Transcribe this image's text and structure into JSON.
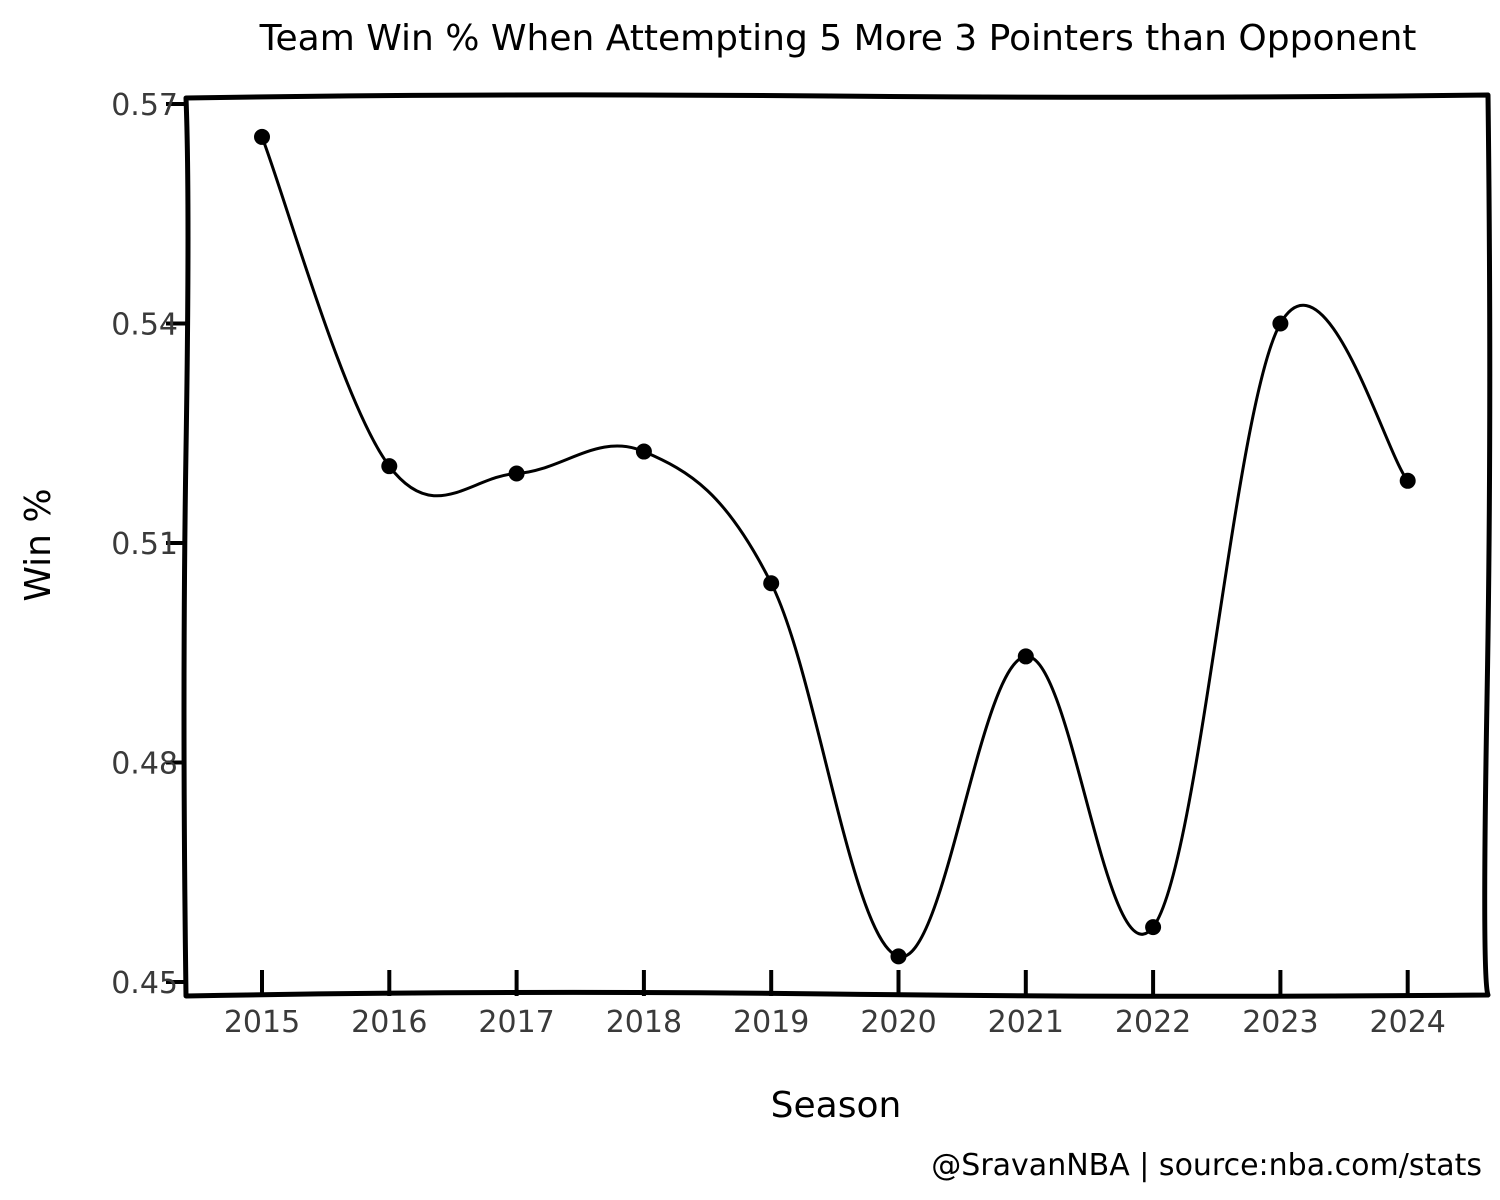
{
  "chart_data": {
    "type": "line",
    "title": "Team Win % When Attempting 5 More 3 Pointers than Opponent",
    "xlabel": "Season",
    "ylabel": "Win %",
    "credit": "@SravanNBA | source:nba.com/stats",
    "x": [
      "2015",
      "2016",
      "2017",
      "2018",
      "2019",
      "2020",
      "2021",
      "2022",
      "2023",
      "2024"
    ],
    "series": [
      {
        "values": [
          0.5655,
          0.5205,
          0.5195,
          0.5225,
          0.5045,
          0.4535,
          0.4945,
          0.4575,
          0.54,
          0.5185
        ]
      }
    ],
    "yticks": [
      "0.45",
      "0.48",
      "0.51",
      "0.54",
      "0.57"
    ],
    "ytick_values": [
      0.45,
      0.48,
      0.51,
      0.54,
      0.57
    ],
    "ylim": [
      0.45,
      0.57
    ],
    "grid": false,
    "line_color": "#000000",
    "marker_color": "#000000"
  }
}
